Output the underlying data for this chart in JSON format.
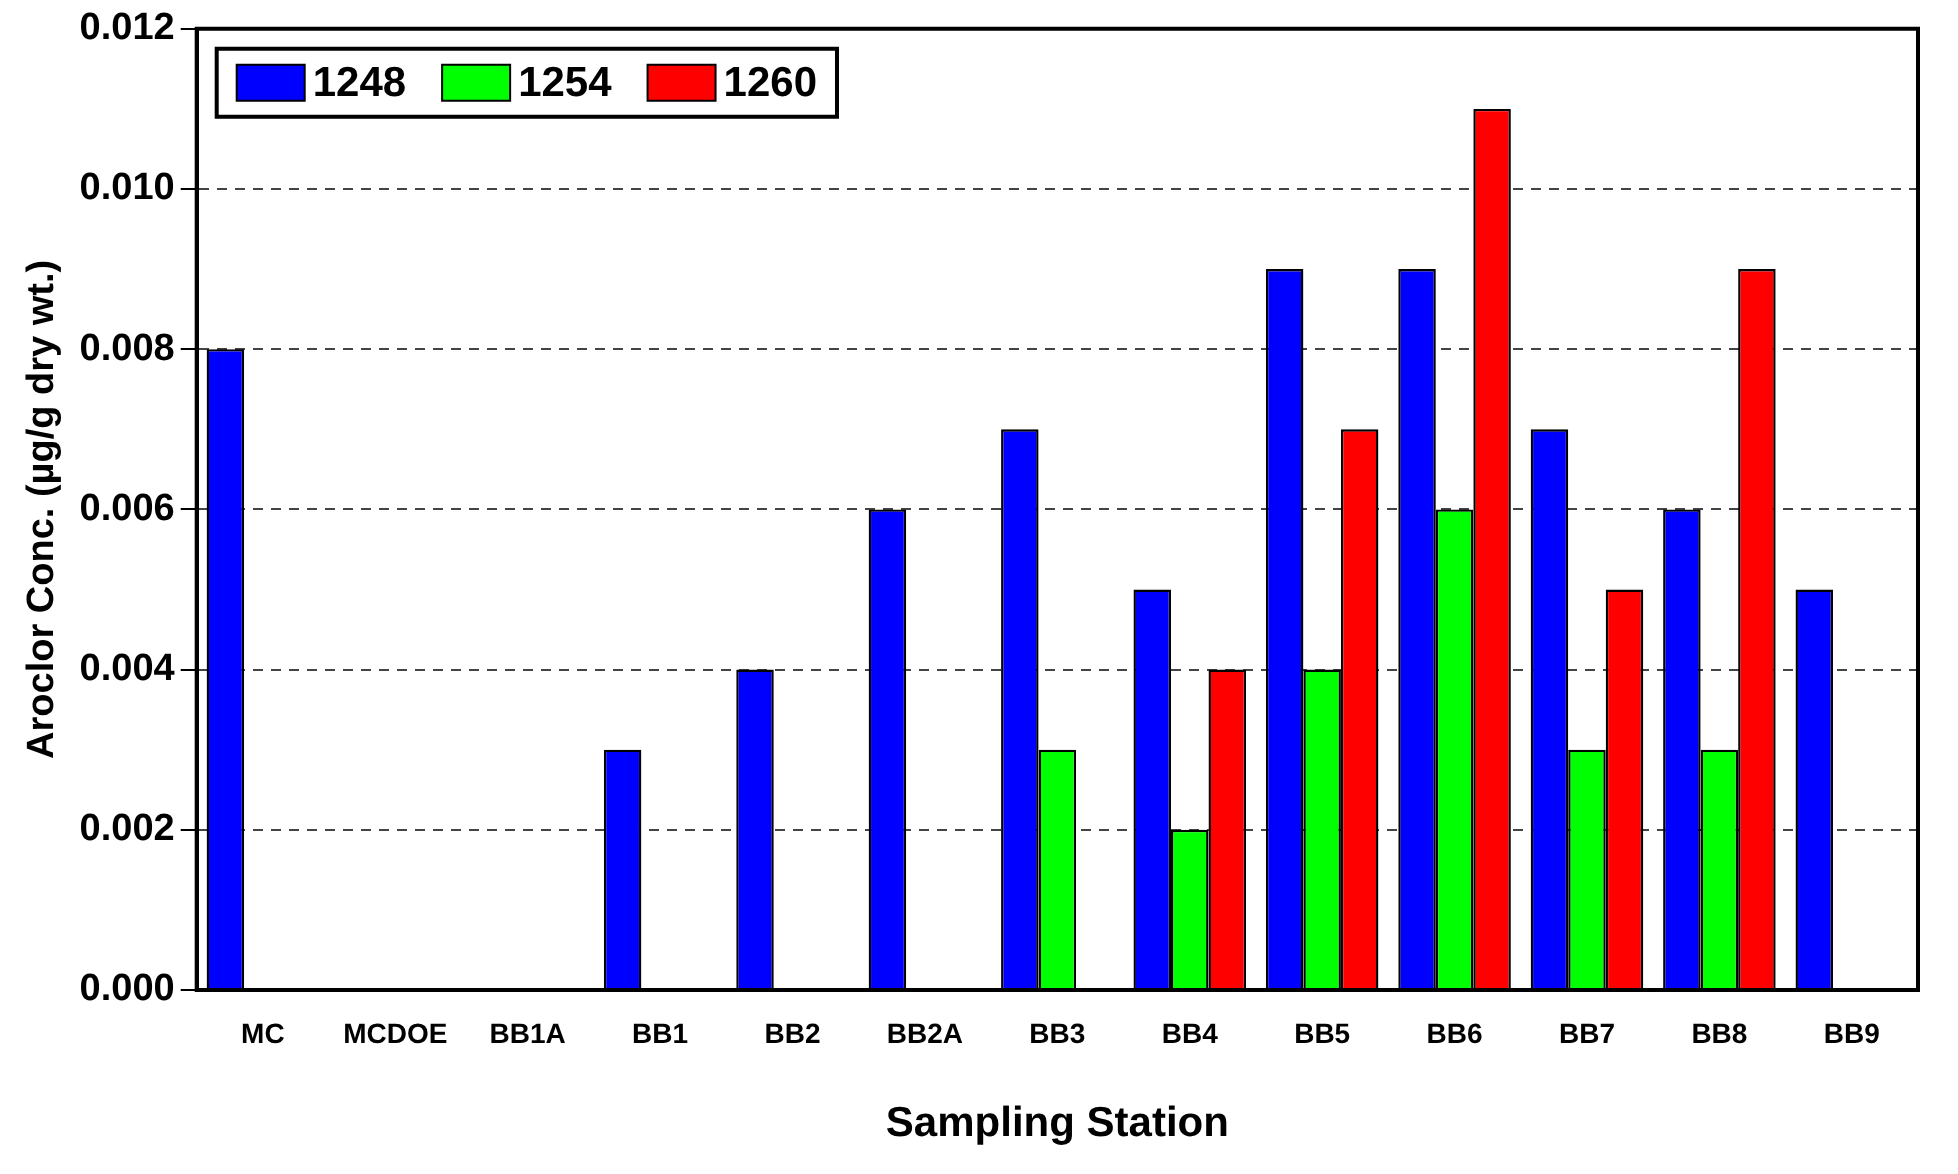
{
  "chart_data": {
    "type": "bar",
    "xlabel": "Sampling Station",
    "ylabel": "Aroclor Conc. (µg/g dry wt.)",
    "categories": [
      "MC",
      "MCDOE",
      "BB1A",
      "BB1",
      "BB2",
      "BB2A",
      "BB3",
      "BB4",
      "BB5",
      "BB6",
      "BB7",
      "BB8",
      "BB9"
    ],
    "series": [
      {
        "name": "1248",
        "color": "#0000ff",
        "values": [
          0.008,
          null,
          null,
          0.003,
          0.004,
          0.006,
          0.007,
          0.005,
          0.009,
          0.009,
          0.007,
          0.006,
          0.005
        ]
      },
      {
        "name": "1254",
        "color": "#00ff00",
        "values": [
          null,
          null,
          null,
          null,
          null,
          null,
          0.003,
          0.002,
          0.004,
          0.006,
          0.003,
          0.003,
          null
        ]
      },
      {
        "name": "1260",
        "color": "#ff0000",
        "values": [
          null,
          null,
          null,
          null,
          null,
          null,
          null,
          0.004,
          0.007,
          0.011,
          0.005,
          0.009,
          null
        ]
      }
    ],
    "ylim": [
      0,
      0.012
    ],
    "yticks": [
      {
        "value": 0,
        "label": "0.000"
      },
      {
        "value": 0.002,
        "label": "0.002"
      },
      {
        "value": 0.004,
        "label": "0.004"
      },
      {
        "value": 0.006,
        "label": "0.006"
      },
      {
        "value": 0.008,
        "label": "0.008"
      },
      {
        "value": 0.01,
        "label": "0.010"
      },
      {
        "value": 0.012,
        "label": "0.012"
      }
    ],
    "grid": "y",
    "legend": "top left"
  }
}
